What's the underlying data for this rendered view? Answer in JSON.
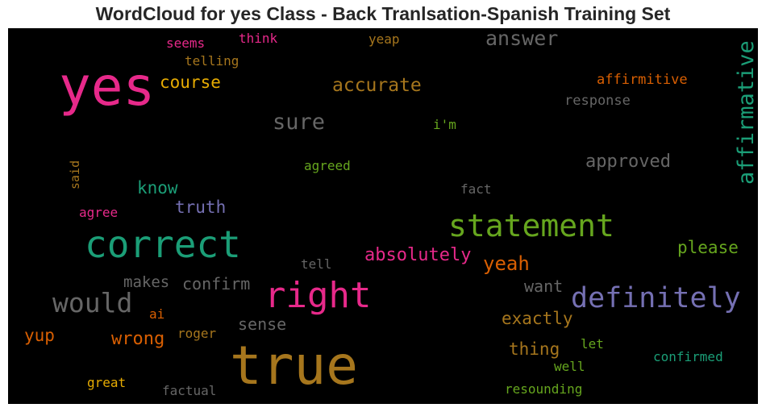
{
  "chart_data": {
    "type": "wordcloud",
    "title": "WordCloud for yes Class - Back Tranlsation-Spanish Training Set",
    "background": "#000000",
    "words": [
      {
        "text": "yes",
        "color": "#e7298a"
      },
      {
        "text": "true",
        "color": "#a6761d"
      },
      {
        "text": "correct",
        "color": "#1b9e77"
      },
      {
        "text": "right",
        "color": "#e7298a"
      },
      {
        "text": "statement",
        "color": "#66a61e"
      },
      {
        "text": "definitely",
        "color": "#7570b3"
      },
      {
        "text": "affirmative",
        "color": "#1b9e77"
      },
      {
        "text": "would",
        "color": "#666666"
      },
      {
        "text": "answer",
        "color": "#666666"
      },
      {
        "text": "sure",
        "color": "#666666"
      },
      {
        "text": "accurate",
        "color": "#a6761d"
      },
      {
        "text": "course",
        "color": "#e6ab02"
      },
      {
        "text": "approved",
        "color": "#666666"
      },
      {
        "text": "yeah",
        "color": "#d95f02"
      },
      {
        "text": "absolutely",
        "color": "#e7298a"
      },
      {
        "text": "please",
        "color": "#66a61e"
      },
      {
        "text": "exactly",
        "color": "#a6761d"
      },
      {
        "text": "thing",
        "color": "#a6761d"
      },
      {
        "text": "confirm",
        "color": "#666666"
      },
      {
        "text": "makes",
        "color": "#666666"
      },
      {
        "text": "know",
        "color": "#1b9e77"
      },
      {
        "text": "truth",
        "color": "#7570b3"
      },
      {
        "text": "want",
        "color": "#666666"
      },
      {
        "text": "wrong",
        "color": "#d95f02"
      },
      {
        "text": "sense",
        "color": "#666666"
      },
      {
        "text": "yup",
        "color": "#d95f02"
      },
      {
        "text": "affirmitive",
        "color": "#d95f02"
      },
      {
        "text": "response",
        "color": "#666666"
      },
      {
        "text": "telling",
        "color": "#a6761d"
      },
      {
        "text": "seems",
        "color": "#e7298a"
      },
      {
        "text": "think",
        "color": "#e7298a"
      },
      {
        "text": "yeap",
        "color": "#a6761d"
      },
      {
        "text": "i'm",
        "color": "#66a61e"
      },
      {
        "text": "agreed",
        "color": "#66a61e"
      },
      {
        "text": "fact",
        "color": "#666666"
      },
      {
        "text": "said",
        "color": "#a6761d"
      },
      {
        "text": "agree",
        "color": "#e7298a"
      },
      {
        "text": "tell",
        "color": "#666666"
      },
      {
        "text": "ai",
        "color": "#d95f02"
      },
      {
        "text": "roger",
        "color": "#a6761d"
      },
      {
        "text": "great",
        "color": "#e6ab02"
      },
      {
        "text": "factual",
        "color": "#666666"
      },
      {
        "text": "let",
        "color": "#66a61e"
      },
      {
        "text": "well",
        "color": "#66a61e"
      },
      {
        "text": "confirmed",
        "color": "#1b9e77"
      },
      {
        "text": "resounding",
        "color": "#66a61e"
      }
    ]
  }
}
